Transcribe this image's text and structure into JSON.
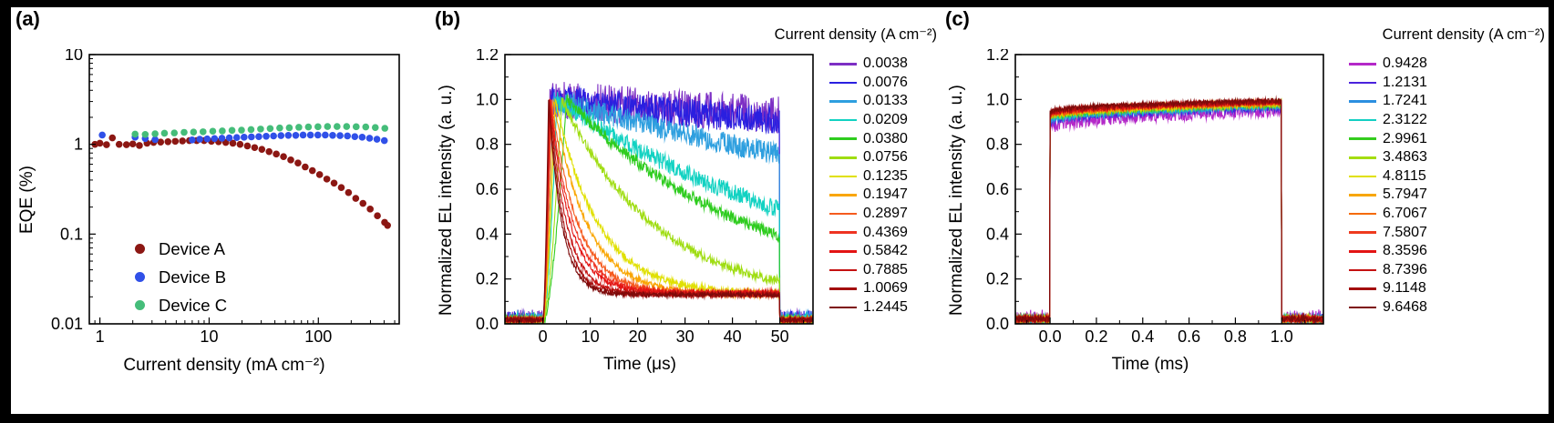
{
  "figure": {
    "background": "#000000",
    "panel_labels": [
      "(a)",
      "(b)",
      "(c)"
    ]
  },
  "chart_data": [
    {
      "id": "a",
      "type": "scatter",
      "title": "",
      "xlabel": "Current density (mA cm⁻²)",
      "ylabel": "EQE (%)",
      "xscale": "log",
      "yscale": "log",
      "xlim": [
        0.8,
        550
      ],
      "ylim": [
        0.01,
        10
      ],
      "xticks": [
        1,
        10,
        100
      ],
      "xtick_labels": [
        "1",
        "10",
        "100"
      ],
      "yticks": [
        0.01,
        0.1,
        1,
        10
      ],
      "ytick_labels": [
        "0.01",
        "0.1",
        "1",
        "10"
      ],
      "grid": false,
      "legend_position": "inside-bottom-left",
      "series": [
        {
          "name": "Device A",
          "color": "#8c1713",
          "points": [
            [
              0.9,
              1.0
            ],
            [
              1.0,
              1.03
            ],
            [
              1.15,
              0.99
            ],
            [
              1.3,
              1.18
            ],
            [
              1.5,
              1.0
            ],
            [
              1.75,
              0.99
            ],
            [
              2.0,
              1.01
            ],
            [
              2.3,
              0.97
            ],
            [
              2.7,
              1.03
            ],
            [
              3.1,
              1.05
            ],
            [
              3.6,
              1.06
            ],
            [
              4.2,
              1.07
            ],
            [
              4.9,
              1.08
            ],
            [
              5.7,
              1.09
            ],
            [
              6.6,
              1.1
            ],
            [
              7.7,
              1.1
            ],
            [
              9.0,
              1.1
            ],
            [
              10.5,
              1.08
            ],
            [
              12.2,
              1.07
            ],
            [
              14.2,
              1.05
            ],
            [
              16.5,
              1.03
            ],
            [
              19.2,
              1.0
            ],
            [
              22.4,
              0.96
            ],
            [
              26.1,
              0.92
            ],
            [
              30.4,
              0.88
            ],
            [
              35.4,
              0.83
            ],
            [
              41.2,
              0.78
            ],
            [
              48.0,
              0.73
            ],
            [
              55.9,
              0.67
            ],
            [
              65.1,
              0.62
            ],
            [
              75.8,
              0.56
            ],
            [
              88.2,
              0.51
            ],
            [
              102.7,
              0.46
            ],
            [
              119.6,
              0.41
            ],
            [
              139.3,
              0.37
            ],
            [
              162.2,
              0.33
            ],
            [
              188.9,
              0.29
            ],
            [
              220.0,
              0.25
            ],
            [
              256.2,
              0.22
            ],
            [
              298.3,
              0.19
            ],
            [
              347.4,
              0.16
            ],
            [
              404.5,
              0.135
            ],
            [
              430.0,
              0.125
            ]
          ]
        },
        {
          "name": "Device B",
          "color": "#3050e8",
          "points": [
            [
              1.05,
              1.27
            ],
            [
              2.1,
              1.2
            ],
            [
              2.6,
              1.16
            ],
            [
              3.2,
              1.13
            ],
            [
              7.0,
              1.12
            ],
            [
              8.2,
              1.14
            ],
            [
              9.6,
              1.15
            ],
            [
              11.2,
              1.16
            ],
            [
              13.1,
              1.17
            ],
            [
              15.3,
              1.18
            ],
            [
              17.9,
              1.19
            ],
            [
              20.9,
              1.2
            ],
            [
              24.4,
              1.21
            ],
            [
              28.5,
              1.22
            ],
            [
              33.3,
              1.23
            ],
            [
              38.9,
              1.24
            ],
            [
              45.5,
              1.25
            ],
            [
              53.1,
              1.26
            ],
            [
              62.1,
              1.26
            ],
            [
              72.5,
              1.27
            ],
            [
              84.7,
              1.27
            ],
            [
              99.0,
              1.27
            ],
            [
              115.7,
              1.27
            ],
            [
              135.2,
              1.26
            ],
            [
              158.0,
              1.25
            ],
            [
              184.6,
              1.24
            ],
            [
              215.7,
              1.22
            ],
            [
              252.0,
              1.2
            ],
            [
              294.5,
              1.17
            ],
            [
              344.1,
              1.14
            ],
            [
              402.1,
              1.1
            ]
          ]
        },
        {
          "name": "Device C",
          "color": "#45bd7a",
          "points": [
            [
              2.1,
              1.3
            ],
            [
              2.6,
              1.29
            ],
            [
              3.2,
              1.31
            ],
            [
              3.9,
              1.33
            ],
            [
              4.8,
              1.34
            ],
            [
              5.9,
              1.36
            ],
            [
              7.2,
              1.37
            ],
            [
              8.8,
              1.38
            ],
            [
              10.8,
              1.4
            ],
            [
              13.2,
              1.41
            ],
            [
              16.2,
              1.43
            ],
            [
              19.8,
              1.44
            ],
            [
              24.2,
              1.46
            ],
            [
              29.6,
              1.48
            ],
            [
              36.2,
              1.5
            ],
            [
              44.3,
              1.52
            ],
            [
              54.2,
              1.53
            ],
            [
              66.3,
              1.55
            ],
            [
              81.1,
              1.56
            ],
            [
              99.2,
              1.57
            ],
            [
              121.3,
              1.58
            ],
            [
              148.4,
              1.58
            ],
            [
              181.5,
              1.58
            ],
            [
              222.0,
              1.57
            ],
            [
              271.6,
              1.56
            ],
            [
              332.2,
              1.54
            ],
            [
              406.3,
              1.51
            ]
          ]
        }
      ]
    },
    {
      "id": "b",
      "type": "line",
      "legend_title": "Current density (A cm⁻²)",
      "xlabel": "Time (μs)",
      "ylabel": "Normalized EL intensity (a. u.)",
      "xlim": [
        -8,
        57
      ],
      "ylim": [
        0,
        1.2
      ],
      "xticks": [
        0,
        10,
        20,
        30,
        40,
        50
      ],
      "xtick_labels": [
        "0",
        "10",
        "20",
        "30",
        "40",
        "50"
      ],
      "yticks": [
        0,
        0.2,
        0.4,
        0.6,
        0.8,
        1.0,
        1.2
      ],
      "ytick_labels": [
        "0.0",
        "0.2",
        "0.4",
        "0.6",
        "0.8",
        "1.0",
        "1.2"
      ],
      "x_minor_step": 5,
      "y_minor_step": 0.1,
      "grid": false,
      "legend_position": "right",
      "pulse": {
        "start": 0,
        "end": 50
      },
      "series": [
        {
          "label": "0.0038",
          "color": "#7d2fc4",
          "params": {
            "tp": 1.5,
            "tau": 600,
            "tail": 0.1,
            "np": 0.085,
            "nb": 0.045
          }
        },
        {
          "label": "0.0076",
          "color": "#2a1fe0",
          "params": {
            "tp": 1.8,
            "tau": 420,
            "tail": 0.1,
            "np": 0.065,
            "nb": 0.04
          }
        },
        {
          "label": "0.0133",
          "color": "#2e9fdf",
          "params": {
            "tp": 2.2,
            "tau": 150,
            "tail": 0.1,
            "np": 0.05,
            "nb": 0.035
          }
        },
        {
          "label": "0.0209",
          "color": "#12d2c2",
          "params": {
            "tp": 3.0,
            "tau": 60,
            "tail": 0.1,
            "np": 0.04,
            "nb": 0.028
          }
        },
        {
          "label": "0.0380",
          "color": "#2ecc1e",
          "params": {
            "tp": 5.0,
            "tau": 40,
            "tail": 0.1,
            "np": 0.025,
            "nb": 0.018
          }
        },
        {
          "label": "0.0756",
          "color": "#9fdd12",
          "params": {
            "tp": 4.0,
            "tau": 20,
            "tail": 0.1,
            "np": 0.02,
            "nb": 0.014
          }
        },
        {
          "label": "0.1235",
          "color": "#e0e000",
          "params": {
            "tp": 2.6,
            "tau": 9,
            "tail": 0.13,
            "np": 0.015,
            "nb": 0.012
          }
        },
        {
          "label": "0.1947",
          "color": "#f9a602",
          "params": {
            "tp": 2.2,
            "tau": 7,
            "tail": 0.13,
            "np": 0.013,
            "nb": 0.012
          }
        },
        {
          "label": "0.2897",
          "color": "#f55b1e",
          "params": {
            "tp": 1.8,
            "tau": 5.5,
            "tail": 0.135,
            "np": 0.012,
            "nb": 0.01
          }
        },
        {
          "label": "0.4369",
          "color": "#ee3322",
          "params": {
            "tp": 1.6,
            "tau": 4.8,
            "tail": 0.135,
            "np": 0.011,
            "nb": 0.01
          }
        },
        {
          "label": "0.5842",
          "color": "#e31414",
          "params": {
            "tp": 1.5,
            "tau": 4.2,
            "tail": 0.14,
            "np": 0.011,
            "nb": 0.01
          }
        },
        {
          "label": "0.7885",
          "color": "#c51111",
          "params": {
            "tp": 1.4,
            "tau": 3.6,
            "tail": 0.13,
            "np": 0.01,
            "nb": 0.01
          }
        },
        {
          "label": "1.0069",
          "color": "#a30e0e",
          "params": {
            "tp": 1.3,
            "tau": 3.1,
            "tail": 0.13,
            "np": 0.01,
            "nb": 0.01
          }
        },
        {
          "label": "1.2445",
          "color": "#7d0a0a",
          "params": {
            "tp": 1.2,
            "tau": 2.8,
            "tail": 0.13,
            "np": 0.01,
            "nb": 0.01
          }
        }
      ]
    },
    {
      "id": "c",
      "type": "line",
      "legend_title": "Current density (A cm⁻²)",
      "xlabel": "Time (ms)",
      "ylabel": "Normalized EL intensity (a. u.)",
      "xlim": [
        -0.15,
        1.18
      ],
      "ylim": [
        0,
        1.2
      ],
      "xticks": [
        0,
        0.2,
        0.4,
        0.6,
        0.8,
        1.0
      ],
      "xtick_labels": [
        "0.0",
        "0.2",
        "0.4",
        "0.6",
        "0.8",
        "1.0"
      ],
      "yticks": [
        0,
        0.2,
        0.4,
        0.6,
        0.8,
        1.0,
        1.2
      ],
      "ytick_labels": [
        "0.0",
        "0.2",
        "0.4",
        "0.6",
        "0.8",
        "1.0",
        "1.2"
      ],
      "x_minor_step": 0.1,
      "y_minor_step": 0.1,
      "grid": false,
      "legend_position": "right",
      "pulse": {
        "start": 0,
        "end": 1
      },
      "series": [
        {
          "label": "0.9428",
          "color": "#b428c8",
          "params": {
            "a": 0.87,
            "b": 0.955,
            "np": 0.03,
            "nb": 0.042
          }
        },
        {
          "label": "1.2131",
          "color": "#4a22dd",
          "params": {
            "a": 0.895,
            "b": 0.965,
            "np": 0.018,
            "nb": 0.022
          }
        },
        {
          "label": "1.7241",
          "color": "#2b8fe0",
          "params": {
            "a": 0.905,
            "b": 0.97,
            "np": 0.015,
            "nb": 0.02
          }
        },
        {
          "label": "2.3122",
          "color": "#13cfc3",
          "params": {
            "a": 0.91,
            "b": 0.975,
            "np": 0.014,
            "nb": 0.018
          }
        },
        {
          "label": "2.9961",
          "color": "#34cc1e",
          "params": {
            "a": 0.915,
            "b": 0.978,
            "np": 0.013,
            "nb": 0.015
          }
        },
        {
          "label": "3.4863",
          "color": "#a4dd11",
          "params": {
            "a": 0.918,
            "b": 0.98,
            "np": 0.012,
            "nb": 0.014
          }
        },
        {
          "label": "4.8115",
          "color": "#e0e000",
          "params": {
            "a": 0.92,
            "b": 0.982,
            "np": 0.012,
            "nb": 0.013
          }
        },
        {
          "label": "5.7947",
          "color": "#f7a600",
          "params": {
            "a": 0.924,
            "b": 0.984,
            "np": 0.011,
            "nb": 0.012
          }
        },
        {
          "label": "6.7067",
          "color": "#f56a00",
          "params": {
            "a": 0.928,
            "b": 0.985,
            "np": 0.011,
            "nb": 0.012
          }
        },
        {
          "label": "7.5807",
          "color": "#ee3a1e",
          "params": {
            "a": 0.93,
            "b": 0.987,
            "np": 0.01,
            "nb": 0.012
          }
        },
        {
          "label": "8.3596",
          "color": "#e31414",
          "params": {
            "a": 0.934,
            "b": 0.989,
            "np": 0.01,
            "nb": 0.012
          }
        },
        {
          "label": "8.7396",
          "color": "#c51111",
          "params": {
            "a": 0.938,
            "b": 0.99,
            "np": 0.01,
            "nb": 0.012
          }
        },
        {
          "label": "9.1148",
          "color": "#a30e0e",
          "params": {
            "a": 0.94,
            "b": 0.992,
            "np": 0.01,
            "nb": 0.012
          }
        },
        {
          "label": "9.6468",
          "color": "#7d0a0a",
          "params": {
            "a": 0.945,
            "b": 0.995,
            "np": 0.01,
            "nb": 0.012
          }
        }
      ]
    }
  ]
}
